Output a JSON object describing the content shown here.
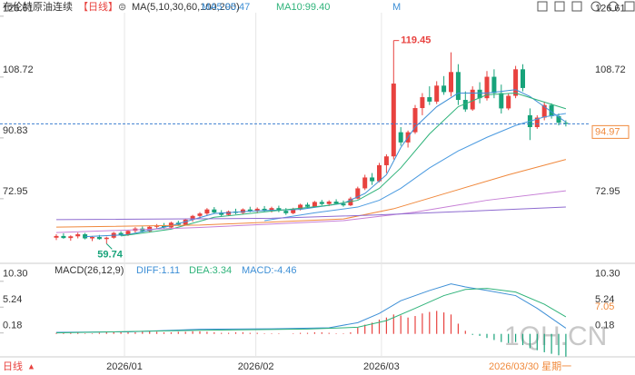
{
  "header": {
    "title": "布伦特原油连续",
    "period": "【日线】",
    "ma_label": "MA(5,10,30,60,100,200)",
    "extra": "M"
  },
  "chart_data": [
    {
      "type": "candlestick",
      "ylim": [
        55.3,
        128.7
      ],
      "yticks": [
        126.61,
        108.72,
        90.83,
        72.95
      ],
      "up_color": "#e8423f",
      "down_color": "#17a37a",
      "last_line_color": "#3d7fd1",
      "xticks": [
        {
          "value": 9.5,
          "label": "2026/01"
        },
        {
          "value": 27.8,
          "label": "2026/02"
        },
        {
          "value": 45.3,
          "label": "2026/03"
        }
      ],
      "candles": {
        "open": [
          61.5,
          62.0,
          61.4,
          61.9,
          62.5,
          61.3,
          61.7,
          61.1,
          61.5,
          62.9,
          62.3,
          63.5,
          64.2,
          63.4,
          64.7,
          65.1,
          64.5,
          65.9,
          65.3,
          66.8,
          67.9,
          68.6,
          69.8,
          68.9,
          68.2,
          69.2,
          68.8,
          69.8,
          69.3,
          70.0,
          69.5,
          70.2,
          69.4,
          68.7,
          69.9,
          71.2,
          70.6,
          72.0,
          71.4,
          72.1,
          71.5,
          71.0,
          73.0,
          76.0,
          79.2,
          78.1,
          82.8,
          85.4,
          92.5,
          89.5,
          92.5,
          99.6,
          102.8,
          101.5,
          106.2,
          104.3,
          110.2,
          102.0,
          99.2,
          105.0,
          102.5,
          108.8,
          104.0,
          99.5,
          103.2,
          111.0,
          97.5,
          94.0,
          96.8,
          100.5,
          97.2,
          95.3
        ],
        "high": [
          62.5,
          62.8,
          62.2,
          63.0,
          62.9,
          62.0,
          62.3,
          61.8,
          63.2,
          63.4,
          63.8,
          64.6,
          64.8,
          65.0,
          65.5,
          65.8,
          66.2,
          66.5,
          67.0,
          68.2,
          69.0,
          70.2,
          70.5,
          69.6,
          69.5,
          70.0,
          70.1,
          70.6,
          70.4,
          70.8,
          70.6,
          70.9,
          70.2,
          70.3,
          71.5,
          71.8,
          72.3,
          72.6,
          72.5,
          72.8,
          72.4,
          73.5,
          76.5,
          80.0,
          80.5,
          83.5,
          86.0,
          119.45,
          94.0,
          93.0,
          100.5,
          104.0,
          106.0,
          107.5,
          109.0,
          116.0,
          112.5,
          104.5,
          106.0,
          107.2,
          110.5,
          111.0,
          106.5,
          104.0,
          112.0,
          112.5,
          99.5,
          97.5,
          101.5,
          101.0,
          98.0,
          96.0
        ],
        "low": [
          60.8,
          61.2,
          60.6,
          61.3,
          61.0,
          60.5,
          60.9,
          59.74,
          61.2,
          62.0,
          62.0,
          63.0,
          63.1,
          63.0,
          64.0,
          64.2,
          64.3,
          65.0,
          65.1,
          66.2,
          67.2,
          68.0,
          68.5,
          67.8,
          67.9,
          68.4,
          68.5,
          69.0,
          68.7,
          69.2,
          68.9,
          69.0,
          68.2,
          68.4,
          69.5,
          70.1,
          70.4,
          71.0,
          70.8,
          71.2,
          70.6,
          70.8,
          72.8,
          75.5,
          77.0,
          77.8,
          80.5,
          84.5,
          88.5,
          88.0,
          92.0,
          97.5,
          100.5,
          100.8,
          103.5,
          103.0,
          100.5,
          98.5,
          98.8,
          101.0,
          101.8,
          102.5,
          98.0,
          99.0,
          102.5,
          104.5,
          90.2,
          93.5,
          96.0,
          96.5,
          94.5,
          94.2
        ],
        "close": [
          62.0,
          61.4,
          61.9,
          62.5,
          61.3,
          61.7,
          61.1,
          61.5,
          62.9,
          62.3,
          63.5,
          64.2,
          63.4,
          64.7,
          65.1,
          64.5,
          65.9,
          65.3,
          66.8,
          67.9,
          68.6,
          69.8,
          68.9,
          68.2,
          69.2,
          68.8,
          69.8,
          69.3,
          70.0,
          69.5,
          70.2,
          69.4,
          68.7,
          69.9,
          71.2,
          70.6,
          72.0,
          71.4,
          72.1,
          71.5,
          71.0,
          73.0,
          76.0,
          79.2,
          78.1,
          82.8,
          85.4,
          106.8,
          89.5,
          92.5,
          99.6,
          102.8,
          101.5,
          106.2,
          104.3,
          110.2,
          102.0,
          99.2,
          105.0,
          102.5,
          108.8,
          104.0,
          99.5,
          103.2,
          111.0,
          105.5,
          94.0,
          96.8,
          100.5,
          97.2,
          95.3,
          94.97
        ]
      },
      "series": [
        {
          "name": "MA5:95.47",
          "color": "#3d8fd6",
          "x": [
            4,
            10,
            16,
            22,
            28,
            34,
            40,
            43,
            46,
            48,
            50,
            53,
            56,
            60,
            64,
            66,
            68,
            71
          ],
          "values": [
            61.8,
            62.4,
            65.0,
            68.6,
            69.4,
            69.8,
            71.6,
            74.5,
            80,
            88,
            94,
            100,
            104,
            104,
            105,
            103,
            100,
            95.47
          ]
        },
        {
          "name": "MA10:99.40",
          "color": "#2fb37a",
          "x": [
            9,
            16,
            22,
            30,
            38,
            42,
            45,
            48,
            52,
            56,
            60,
            64,
            67,
            71
          ],
          "values": [
            62,
            64,
            67.5,
            69.3,
            71,
            72.5,
            76,
            82,
            92,
            100,
            103.5,
            104,
            102,
            99.4
          ]
        },
        {
          "color": "#4a9ae0",
          "x": [
            29,
            36,
            42,
            45,
            48,
            52,
            56,
            60,
            64,
            68,
            71
          ],
          "values": [
            66.5,
            68.8,
            70.5,
            72.5,
            76,
            82,
            87,
            91,
            94.5,
            97,
            98.0
          ]
        },
        {
          "color": "#f0883c",
          "x": [
            0,
            20,
            40,
            47,
            55,
            63,
            71
          ],
          "values": [
            64.6,
            65.2,
            67,
            70,
            75,
            80,
            84.5
          ]
        },
        {
          "color": "#c77fd6",
          "x": [
            0,
            20,
            40,
            50,
            60,
            71
          ],
          "values": [
            63.0,
            64.5,
            66.5,
            69,
            72.5,
            75.3
          ]
        },
        {
          "color": "#8e6bd0",
          "x": [
            0,
            30,
            45,
            60,
            71
          ],
          "values": [
            66.8,
            67.2,
            68.2,
            69.5,
            70.5
          ]
        }
      ]
    },
    {
      "type": "macd",
      "title": "MACD(26,12,9)",
      "ylim": [
        -4.5,
        12.4
      ],
      "yticks": [
        {
          "value": 10.3,
          "label": "10.30"
        },
        5.24,
        0.18
      ],
      "marker_label": "7.05",
      "series": [
        {
          "name": "DIFF:1.11",
          "color": "#3d8fd6",
          "x": [
            0,
            10,
            20,
            30,
            38,
            42,
            45,
            48,
            52,
            55,
            57,
            60,
            64,
            67,
            71
          ],
          "values": [
            0.3,
            0.4,
            0.9,
            1.0,
            1.2,
            2.2,
            4.0,
            6.5,
            8.5,
            9.8,
            9.2,
            8.5,
            7.5,
            5.0,
            1.11
          ]
        },
        {
          "name": "DEA:3.34",
          "color": "#2fb37a",
          "x": [
            0,
            20,
            35,
            42,
            46,
            50,
            54,
            57,
            60,
            64,
            68,
            71
          ],
          "values": [
            0.2,
            0.7,
            0.95,
            1.3,
            2.6,
            5.0,
            7.5,
            8.7,
            8.9,
            8.2,
            5.8,
            3.34
          ]
        }
      ],
      "histogram": {
        "name": "MACD:-4.46",
        "color": "#3d8fd6",
        "up_color": "#e8423f",
        "down_color": "#17a37a",
        "values": [
          0.2,
          0.2,
          0.3,
          0.2,
          0.1,
          0.1,
          0.2,
          0.3,
          0.4,
          0.4,
          0.3,
          0.3,
          0.4,
          0.5,
          0.4,
          0.3,
          0.3,
          0.4,
          0.4,
          0.5,
          0.5,
          0.4,
          0.3,
          0.2,
          0.2,
          0.3,
          0.3,
          0.2,
          0.2,
          0.1,
          0.1,
          0.1,
          0.0,
          0.1,
          0.2,
          0.2,
          0.3,
          0.3,
          0.2,
          0.1,
          0.1,
          0.3,
          1.2,
          1.8,
          2.2,
          2.8,
          3.2,
          3.8,
          3.6,
          3.2,
          3.5,
          4.0,
          4.3,
          4.5,
          4.2,
          3.8,
          2.0,
          0.6,
          -0.2,
          -0.4,
          -0.8,
          -1.2,
          -1.6,
          -1.8,
          -1.6,
          -2.2,
          -2.8,
          -3.2,
          -3.6,
          -3.9,
          -4.2,
          -4.46
        ]
      }
    }
  ],
  "footer": {
    "period": "日线",
    "date": "2026/03/30 星期一"
  },
  "watermark": "1QH.CN"
}
